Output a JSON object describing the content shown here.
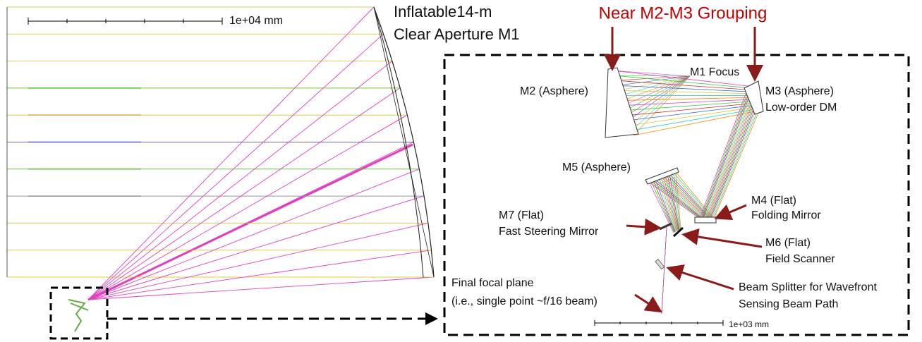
{
  "scale_bars": [
    {
      "label": "1e+04 mm"
    },
    {
      "label": "1e+03 mm"
    }
  ],
  "title": "Near M2-M3 Grouping",
  "labels": [
    {
      "lines": [
        "Inflatable14-m",
        "Clear Aperture M1"
      ]
    },
    {
      "lines": [
        "M1 Focus"
      ]
    },
    {
      "lines": [
        "M2 (Asphere)"
      ]
    },
    {
      "lines": [
        "M3 (Asphere)",
        "Low-order DM"
      ]
    },
    {
      "lines": [
        "M5 (Asphere)"
      ]
    },
    {
      "lines": [
        "M4 (Flat)",
        "Folding Mirror"
      ]
    },
    {
      "lines": [
        "M7 (Flat)",
        "Fast Steering Mirror"
      ]
    },
    {
      "lines": [
        "M6 (Flat)",
        "Field Scanner"
      ]
    },
    {
      "lines": [
        "Final focal plane",
        "(i.e., single point ~f/16 beam)"
      ]
    },
    {
      "lines": [
        "Beam Splitter for Wavefront",
        "Sensing Beam Path"
      ]
    }
  ]
}
